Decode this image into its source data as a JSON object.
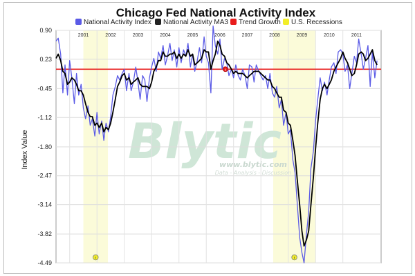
{
  "watermark": {
    "brand": "Blytic",
    "url": "www.blytic.com",
    "tagline": "Data - Analysis - Discussion"
  },
  "recession_marker_glyph": "r",
  "trend_marker_glyph": "t",
  "colors": {
    "activity": "#5a5ae6",
    "ma3": "#000000",
    "trend": "#e81c1c",
    "recession": "#fbfbd9",
    "legend_recession": "#f2ee2a"
  },
  "chart_data": {
    "type": "line",
    "title": "Chicago Fed National Activity Index",
    "ylabel": "Index Value",
    "xlabel": "",
    "ylim": [
      -4.49,
      0.9
    ],
    "y_ticks": [
      "0.90",
      "0.23",
      "-0.45",
      "-1.12",
      "-1.80",
      "-2.47",
      "-3.14",
      "-3.82",
      "-4.49"
    ],
    "x_ticks": [
      "2001",
      "2002",
      "2003",
      "2004",
      "2005",
      "2006",
      "2007",
      "2008",
      "2009",
      "2010",
      "2011"
    ],
    "x_start": 2000.0,
    "x_end": 2011.9,
    "grid": true,
    "legend": "top-center",
    "series": [
      {
        "name": "National Activity Index",
        "color": "#5a5ae6",
        "x": [
          2000.0,
          2000.08,
          2000.17,
          2000.25,
          2000.33,
          2000.42,
          2000.5,
          2000.58,
          2000.67,
          2000.75,
          2000.83,
          2000.92,
          2001.0,
          2001.08,
          2001.17,
          2001.25,
          2001.33,
          2001.42,
          2001.5,
          2001.58,
          2001.67,
          2001.75,
          2001.83,
          2001.92,
          2002.0,
          2002.08,
          2002.17,
          2002.25,
          2002.33,
          2002.42,
          2002.5,
          2002.58,
          2002.67,
          2002.75,
          2002.83,
          2002.92,
          2003.0,
          2003.08,
          2003.17,
          2003.25,
          2003.33,
          2003.42,
          2003.5,
          2003.58,
          2003.67,
          2003.75,
          2003.83,
          2003.92,
          2004.0,
          2004.08,
          2004.17,
          2004.25,
          2004.33,
          2004.42,
          2004.5,
          2004.58,
          2004.67,
          2004.75,
          2004.83,
          2004.92,
          2005.0,
          2005.08,
          2005.17,
          2005.25,
          2005.33,
          2005.42,
          2005.5,
          2005.58,
          2005.67,
          2005.75,
          2005.83,
          2005.92,
          2006.0,
          2006.08,
          2006.17,
          2006.25,
          2006.33,
          2006.42,
          2006.5,
          2006.58,
          2006.67,
          2006.75,
          2006.83,
          2006.92,
          2007.0,
          2007.08,
          2007.17,
          2007.25,
          2007.33,
          2007.42,
          2007.5,
          2007.58,
          2007.67,
          2007.75,
          2007.83,
          2007.92,
          2008.0,
          2008.08,
          2008.17,
          2008.25,
          2008.33,
          2008.42,
          2008.5,
          2008.58,
          2008.67,
          2008.75,
          2008.83,
          2008.92,
          2009.0,
          2009.08,
          2009.17,
          2009.25,
          2009.33,
          2009.42,
          2009.5,
          2009.58,
          2009.67,
          2009.75,
          2009.83,
          2009.92,
          2010.0,
          2010.08,
          2010.17,
          2010.25,
          2010.33,
          2010.42,
          2010.5,
          2010.58,
          2010.67,
          2010.75,
          2010.83,
          2010.92,
          2011.0,
          2011.08,
          2011.17,
          2011.25,
          2011.33,
          2011.42,
          2011.5,
          2011.58,
          2011.67,
          2011.75
        ],
        "values": [
          0.65,
          0.72,
          0.35,
          -0.55,
          0.1,
          -0.6,
          0.2,
          -0.2,
          -0.8,
          -0.1,
          -0.6,
          -0.35,
          -0.9,
          -1.15,
          -0.85,
          -1.3,
          -1.15,
          -1.55,
          -1.0,
          -1.5,
          -1.2,
          -1.65,
          -1.25,
          -1.45,
          -1.1,
          -0.6,
          -0.4,
          -0.15,
          -0.25,
          -0.1,
          0.0,
          -0.5,
          -0.1,
          -0.5,
          -0.3,
          0.05,
          -0.3,
          -0.7,
          -0.15,
          -0.25,
          -0.75,
          -0.2,
          0.05,
          0.25,
          -0.05,
          0.4,
          0.25,
          0.55,
          0.1,
          0.3,
          0.6,
          0.2,
          0.45,
          0.05,
          0.5,
          0.15,
          0.45,
          0.3,
          0.6,
          0.05,
          0.35,
          -0.05,
          0.2,
          0.5,
          0.15,
          0.75,
          0.3,
          0.15,
          -0.55,
          1.0,
          0.55,
          0.35,
          0.7,
          0.0,
          0.25,
          0.15,
          -0.15,
          0.0,
          -0.2,
          0.1,
          -0.15,
          -0.25,
          0.0,
          -0.15,
          -0.45,
          0.1,
          0.05,
          -0.3,
          0.1,
          -0.05,
          -0.15,
          -0.25,
          -0.15,
          -0.45,
          -0.1,
          -0.55,
          -0.65,
          -0.4,
          -0.9,
          -0.7,
          -1.3,
          -1.0,
          -1.5,
          -1.4,
          -2.1,
          -2.4,
          -3.1,
          -3.9,
          -4.25,
          -4.49,
          -3.8,
          -3.3,
          -2.3,
          -1.9,
          -1.2,
          -0.7,
          -0.2,
          -0.5,
          -0.3,
          -0.6,
          -0.25,
          0.05,
          0.15,
          -0.1,
          0.4,
          0.45,
          0.35,
          -0.05,
          0.1,
          -0.45,
          -0.1,
          0.3,
          0.15,
          0.7,
          0.35,
          0.0,
          0.25,
          0.55,
          -0.4,
          0.4,
          -0.2,
          0.2
        ]
      },
      {
        "name": "National Activity MA3",
        "color": "#000000",
        "x": [
          2000.0,
          2000.08,
          2000.17,
          2000.25,
          2000.33,
          2000.42,
          2000.5,
          2000.58,
          2000.67,
          2000.75,
          2000.83,
          2000.92,
          2001.0,
          2001.08,
          2001.17,
          2001.25,
          2001.33,
          2001.42,
          2001.5,
          2001.58,
          2001.67,
          2001.75,
          2001.83,
          2001.92,
          2002.0,
          2002.08,
          2002.17,
          2002.25,
          2002.33,
          2002.42,
          2002.5,
          2002.58,
          2002.67,
          2002.75,
          2002.83,
          2002.92,
          2003.0,
          2003.08,
          2003.17,
          2003.25,
          2003.33,
          2003.42,
          2003.5,
          2003.58,
          2003.67,
          2003.75,
          2003.83,
          2003.92,
          2004.0,
          2004.08,
          2004.17,
          2004.25,
          2004.33,
          2004.42,
          2004.5,
          2004.58,
          2004.67,
          2004.75,
          2004.83,
          2004.92,
          2005.0,
          2005.08,
          2005.17,
          2005.25,
          2005.33,
          2005.42,
          2005.5,
          2005.58,
          2005.67,
          2005.75,
          2005.83,
          2005.92,
          2006.0,
          2006.08,
          2006.17,
          2006.25,
          2006.33,
          2006.42,
          2006.5,
          2006.58,
          2006.67,
          2006.75,
          2006.83,
          2006.92,
          2007.0,
          2007.08,
          2007.17,
          2007.25,
          2007.33,
          2007.42,
          2007.5,
          2007.58,
          2007.67,
          2007.75,
          2007.83,
          2007.92,
          2008.0,
          2008.08,
          2008.17,
          2008.25,
          2008.33,
          2008.42,
          2008.5,
          2008.58,
          2008.67,
          2008.75,
          2008.83,
          2008.92,
          2009.0,
          2009.08,
          2009.17,
          2009.25,
          2009.33,
          2009.42,
          2009.5,
          2009.58,
          2009.67,
          2009.75,
          2009.83,
          2009.92,
          2010.0,
          2010.08,
          2010.17,
          2010.25,
          2010.33,
          2010.42,
          2010.5,
          2010.58,
          2010.67,
          2010.75,
          2010.83,
          2010.92,
          2011.0,
          2011.08,
          2011.17,
          2011.25,
          2011.33,
          2011.42,
          2011.5,
          2011.58,
          2011.67,
          2011.75
        ],
        "values": [
          0.25,
          0.35,
          0.2,
          -0.05,
          -0.1,
          -0.35,
          -0.3,
          -0.2,
          -0.25,
          -0.35,
          -0.5,
          -0.5,
          -0.6,
          -0.8,
          -1.0,
          -1.1,
          -1.1,
          -1.3,
          -1.25,
          -1.35,
          -1.25,
          -1.45,
          -1.35,
          -1.4,
          -1.25,
          -1.0,
          -0.7,
          -0.4,
          -0.3,
          -0.15,
          -0.1,
          -0.25,
          -0.2,
          -0.35,
          -0.3,
          -0.25,
          -0.2,
          -0.35,
          -0.4,
          -0.4,
          -0.4,
          -0.45,
          -0.3,
          -0.05,
          0.05,
          0.2,
          0.2,
          0.4,
          0.3,
          0.3,
          0.35,
          0.35,
          0.4,
          0.25,
          0.35,
          0.25,
          0.35,
          0.3,
          0.45,
          0.3,
          0.35,
          0.1,
          0.15,
          0.2,
          0.25,
          0.45,
          0.4,
          0.4,
          0.0,
          0.2,
          0.35,
          0.65,
          0.55,
          0.35,
          0.3,
          0.15,
          0.1,
          0.0,
          -0.1,
          -0.05,
          -0.1,
          -0.1,
          -0.1,
          -0.15,
          -0.2,
          -0.15,
          -0.1,
          -0.05,
          -0.05,
          -0.05,
          -0.1,
          -0.15,
          -0.2,
          -0.25,
          -0.25,
          -0.4,
          -0.45,
          -0.55,
          -0.65,
          -0.65,
          -0.95,
          -1.0,
          -1.25,
          -1.3,
          -1.65,
          -2.0,
          -2.55,
          -3.15,
          -3.75,
          -4.1,
          -3.95,
          -3.75,
          -3.15,
          -2.5,
          -1.85,
          -1.25,
          -0.7,
          -0.45,
          -0.35,
          -0.45,
          -0.35,
          -0.25,
          -0.05,
          0.05,
          0.15,
          0.25,
          0.4,
          0.25,
          0.15,
          0.0,
          -0.15,
          -0.1,
          0.1,
          0.35,
          0.4,
          0.35,
          0.2,
          0.25,
          0.35,
          0.45,
          0.2,
          0.1
        ]
      },
      {
        "name": "Trend Growth",
        "color": "#e81c1c",
        "x": [
          2000.0,
          2011.9
        ],
        "values": [
          0.0,
          0.0
        ]
      },
      {
        "name": "U.S. Recessions",
        "color": "#f2ee2a",
        "ranges": [
          [
            2001.0,
            2001.9
          ],
          [
            2007.95,
            2009.5
          ]
        ]
      }
    ]
  }
}
